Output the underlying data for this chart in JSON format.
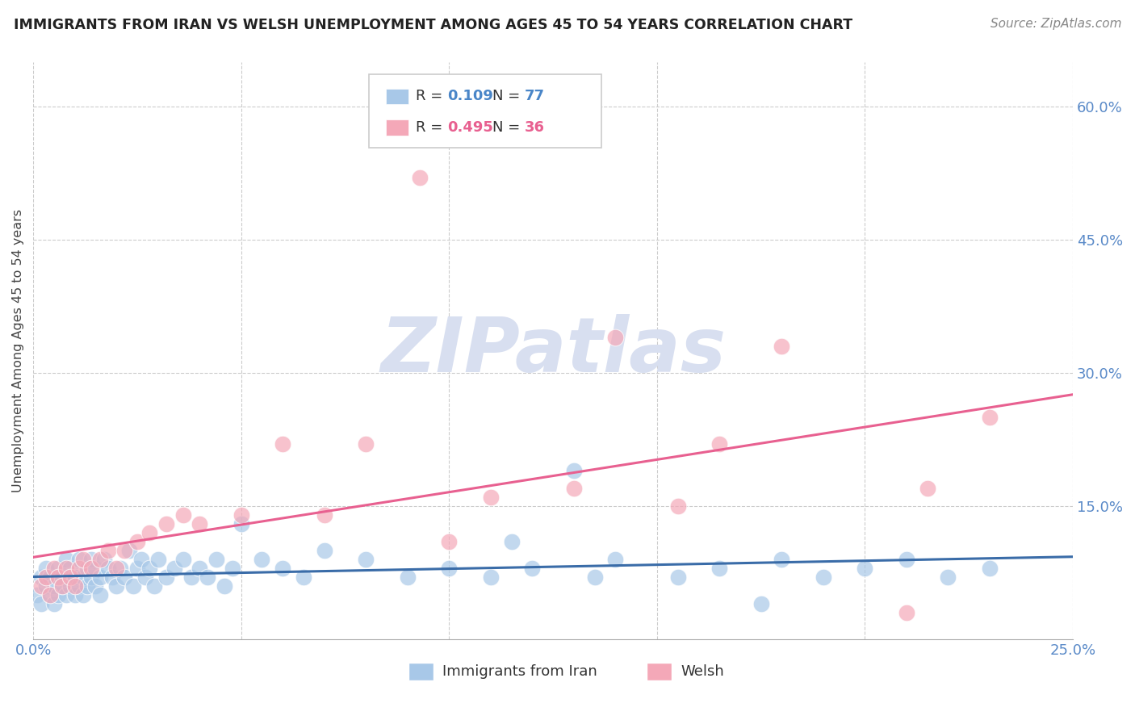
{
  "title": "IMMIGRANTS FROM IRAN VS WELSH UNEMPLOYMENT AMONG AGES 45 TO 54 YEARS CORRELATION CHART",
  "source": "Source: ZipAtlas.com",
  "ylabel": "Unemployment Among Ages 45 to 54 years",
  "xlim": [
    0.0,
    0.25
  ],
  "ylim": [
    0.0,
    0.65
  ],
  "color_iran": "#a8c8e8",
  "color_welsh": "#f4a8b8",
  "color_iran_line": "#3a6ca8",
  "color_welsh_line": "#e86090",
  "color_axis": "#5a8ac8",
  "background": "#ffffff",
  "iran_x": [
    0.001,
    0.002,
    0.002,
    0.003,
    0.003,
    0.004,
    0.004,
    0.005,
    0.005,
    0.006,
    0.006,
    0.007,
    0.007,
    0.008,
    0.008,
    0.009,
    0.009,
    0.01,
    0.01,
    0.011,
    0.011,
    0.012,
    0.012,
    0.013,
    0.013,
    0.014,
    0.014,
    0.015,
    0.015,
    0.016,
    0.016,
    0.017,
    0.018,
    0.019,
    0.02,
    0.021,
    0.022,
    0.023,
    0.024,
    0.025,
    0.026,
    0.027,
    0.028,
    0.029,
    0.03,
    0.032,
    0.034,
    0.036,
    0.038,
    0.04,
    0.042,
    0.044,
    0.046,
    0.048,
    0.05,
    0.055,
    0.06,
    0.065,
    0.07,
    0.08,
    0.09,
    0.1,
    0.11,
    0.12,
    0.13,
    0.14,
    0.155,
    0.165,
    0.18,
    0.19,
    0.2,
    0.21,
    0.22,
    0.23,
    0.115,
    0.135,
    0.175
  ],
  "iran_y": [
    0.05,
    0.07,
    0.04,
    0.06,
    0.08,
    0.05,
    0.07,
    0.06,
    0.04,
    0.08,
    0.05,
    0.07,
    0.06,
    0.09,
    0.05,
    0.06,
    0.08,
    0.07,
    0.05,
    0.09,
    0.06,
    0.07,
    0.05,
    0.08,
    0.06,
    0.07,
    0.09,
    0.06,
    0.08,
    0.07,
    0.05,
    0.09,
    0.08,
    0.07,
    0.06,
    0.08,
    0.07,
    0.1,
    0.06,
    0.08,
    0.09,
    0.07,
    0.08,
    0.06,
    0.09,
    0.07,
    0.08,
    0.09,
    0.07,
    0.08,
    0.07,
    0.09,
    0.06,
    0.08,
    0.13,
    0.09,
    0.08,
    0.07,
    0.1,
    0.09,
    0.07,
    0.08,
    0.07,
    0.08,
    0.19,
    0.09,
    0.07,
    0.08,
    0.09,
    0.07,
    0.08,
    0.09,
    0.07,
    0.08,
    0.11,
    0.07,
    0.04
  ],
  "welsh_x": [
    0.002,
    0.003,
    0.004,
    0.005,
    0.006,
    0.007,
    0.008,
    0.009,
    0.01,
    0.011,
    0.012,
    0.014,
    0.016,
    0.018,
    0.02,
    0.022,
    0.025,
    0.028,
    0.032,
    0.036,
    0.04,
    0.05,
    0.06,
    0.07,
    0.08,
    0.093,
    0.1,
    0.11,
    0.13,
    0.14,
    0.155,
    0.165,
    0.18,
    0.21,
    0.215,
    0.23
  ],
  "welsh_y": [
    0.06,
    0.07,
    0.05,
    0.08,
    0.07,
    0.06,
    0.08,
    0.07,
    0.06,
    0.08,
    0.09,
    0.08,
    0.09,
    0.1,
    0.08,
    0.1,
    0.11,
    0.12,
    0.13,
    0.14,
    0.13,
    0.14,
    0.22,
    0.14,
    0.22,
    0.52,
    0.11,
    0.16,
    0.17,
    0.34,
    0.15,
    0.22,
    0.33,
    0.03,
    0.17,
    0.25
  ]
}
